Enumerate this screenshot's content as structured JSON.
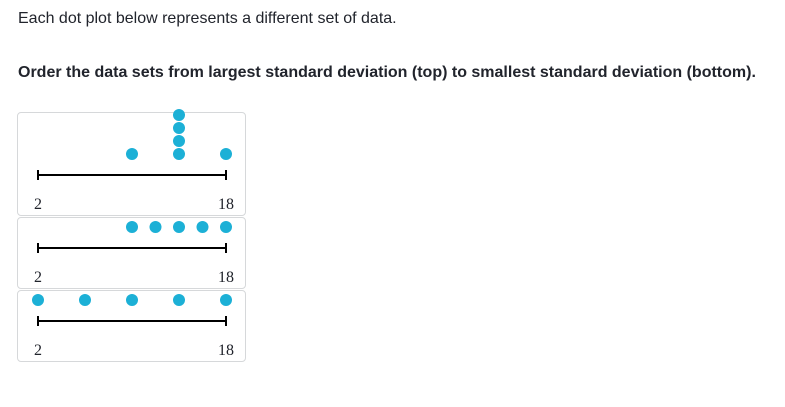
{
  "question": {
    "intro": "Each dot plot below represents a different set of data.",
    "instruction": "Order the data sets from largest standard deviation (top) to smallest standard deviation (bottom)."
  },
  "plots": [
    {
      "axis_min_label": "2",
      "axis_max_label": "18",
      "range": [
        2,
        18
      ],
      "points": [
        10,
        14,
        14,
        14,
        14,
        18
      ]
    },
    {
      "axis_min_label": "2",
      "axis_max_label": "18",
      "range": [
        2,
        18
      ],
      "points": [
        10,
        12,
        14,
        16,
        18
      ]
    },
    {
      "axis_min_label": "2",
      "axis_max_label": "18",
      "range": [
        2,
        18
      ],
      "points": [
        2,
        6,
        10,
        14,
        18
      ]
    }
  ],
  "colors": {
    "dot": "#1cb0d6",
    "axis": "#000000",
    "border": "#d6d8da"
  }
}
